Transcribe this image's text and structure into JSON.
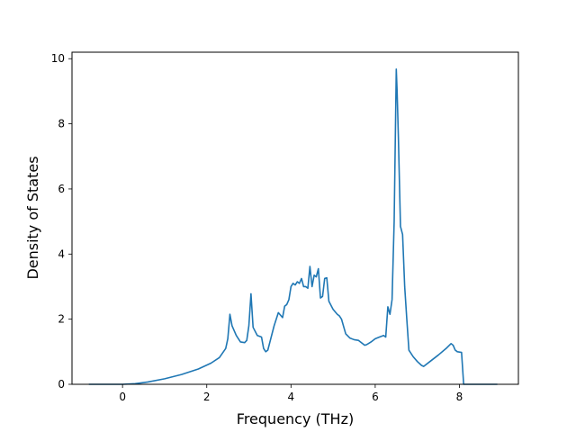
{
  "chart_data": {
    "type": "line",
    "title": "",
    "xlabel": "Frequency (THz)",
    "ylabel": "Density of States",
    "xlim": [
      -1.2,
      9.4
    ],
    "ylim": [
      0,
      10.2
    ],
    "xticks": [
      0,
      2,
      4,
      6,
      8
    ],
    "yticks": [
      0,
      2,
      4,
      6,
      8,
      10
    ],
    "grid": false,
    "line_color": "#1f77b4",
    "series": [
      {
        "x": [
          -0.8,
          -0.4,
          0.0,
          0.3,
          0.6,
          1.0,
          1.4,
          1.8,
          2.1,
          2.3,
          2.45,
          2.5,
          2.55,
          2.6,
          2.7,
          2.8,
          2.9,
          2.95,
          3.0,
          3.05,
          3.1,
          3.2,
          3.3,
          3.35,
          3.4,
          3.45,
          3.5,
          3.6,
          3.7,
          3.8,
          3.85,
          3.9,
          3.95,
          4.0,
          4.05,
          4.1,
          4.15,
          4.2,
          4.25,
          4.3,
          4.35,
          4.4,
          4.45,
          4.5,
          4.55,
          4.6,
          4.65,
          4.7,
          4.75,
          4.8,
          4.85,
          4.9,
          5.0,
          5.1,
          5.15,
          5.2,
          5.3,
          5.4,
          5.5,
          5.6,
          5.7,
          5.75,
          5.8,
          5.9,
          6.0,
          6.1,
          6.2,
          6.25,
          6.3,
          6.35,
          6.4,
          6.45,
          6.5,
          6.52,
          6.55,
          6.6,
          6.65,
          6.7,
          6.75,
          6.8,
          6.9,
          7.0,
          7.1,
          7.15,
          7.3,
          7.5,
          7.7,
          7.8,
          7.85,
          7.9,
          7.95,
          8.05,
          8.1,
          8.12,
          8.5,
          8.9
        ],
        "y": [
          0,
          0,
          0,
          0.02,
          0.07,
          0.17,
          0.3,
          0.47,
          0.65,
          0.82,
          1.1,
          1.4,
          2.15,
          1.8,
          1.5,
          1.3,
          1.28,
          1.35,
          1.8,
          2.78,
          1.75,
          1.5,
          1.45,
          1.1,
          1.0,
          1.05,
          1.3,
          1.8,
          2.2,
          2.05,
          2.4,
          2.45,
          2.6,
          3.0,
          3.1,
          3.05,
          3.15,
          3.1,
          3.25,
          3.0,
          3.0,
          2.95,
          3.62,
          3.0,
          3.35,
          3.3,
          3.55,
          2.65,
          2.7,
          3.25,
          3.27,
          2.55,
          2.3,
          2.15,
          2.1,
          2.0,
          1.55,
          1.42,
          1.37,
          1.35,
          1.25,
          1.2,
          1.22,
          1.3,
          1.4,
          1.45,
          1.5,
          1.45,
          2.38,
          2.15,
          2.6,
          5.0,
          9.68,
          9.0,
          7.6,
          4.85,
          4.6,
          3.0,
          2.0,
          1.05,
          0.85,
          0.7,
          0.58,
          0.55,
          0.7,
          0.9,
          1.12,
          1.25,
          1.2,
          1.05,
          1.0,
          0.98,
          0.0,
          0.0,
          0.0,
          0.0
        ]
      }
    ]
  }
}
